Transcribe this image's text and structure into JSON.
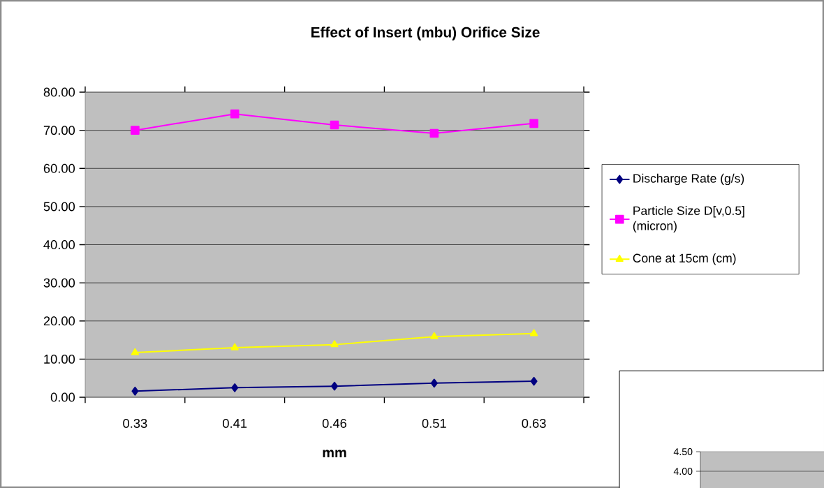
{
  "chart_data": [
    {
      "type": "line",
      "title": "Effect of Insert (mbu) Orifice Size",
      "xlabel": "mm",
      "categories": [
        "0.33",
        "0.41",
        "0.46",
        "0.51",
        "0.63"
      ],
      "series": [
        {
          "name": "Discharge Rate (g/s)",
          "color": "#000080",
          "marker": "diamond",
          "values": [
            1.6,
            2.5,
            2.9,
            3.7,
            4.2
          ]
        },
        {
          "name": "Particle Size D[v,0.5] (micron)",
          "color": "#ff00ff",
          "marker": "square",
          "values": [
            70.0,
            74.3,
            71.4,
            69.2,
            71.8
          ]
        },
        {
          "name": "Cone at 15cm (cm)",
          "color": "#ffff00",
          "marker": "triangle",
          "values": [
            11.7,
            13.0,
            13.8,
            15.9,
            16.7
          ]
        }
      ],
      "ylim": [
        0,
        80
      ],
      "yticks": [
        {
          "value": 0,
          "label": "0.00"
        },
        {
          "value": 10,
          "label": "10.00"
        },
        {
          "value": 20,
          "label": "20.00"
        },
        {
          "value": 30,
          "label": "30.00"
        },
        {
          "value": 40,
          "label": "40.00"
        },
        {
          "value": 50,
          "label": "50.00"
        },
        {
          "value": 60,
          "label": "60.00"
        },
        {
          "value": 70,
          "label": "70.00"
        },
        {
          "value": 80,
          "label": "80.00"
        }
      ],
      "grid": "y",
      "legend": "right"
    },
    {
      "type": "other",
      "annotations": [
        "4.50",
        "4.00"
      ]
    }
  ]
}
